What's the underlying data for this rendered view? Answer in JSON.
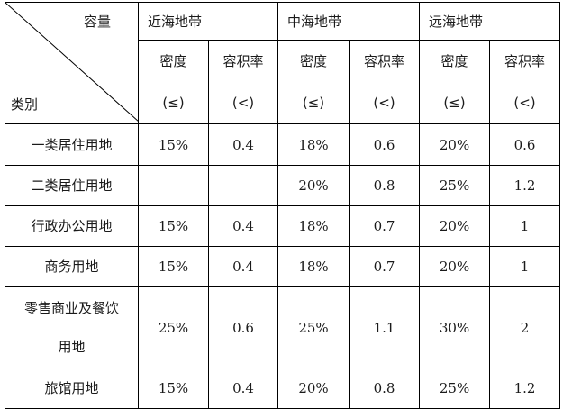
{
  "corner": {
    "top": "容量",
    "bottom": "类别"
  },
  "zones": [
    "近海地带",
    "中海地带",
    "远海地带"
  ],
  "sub_headers": [
    {
      "name": "密度",
      "unit": "(≤)"
    },
    {
      "name": "容积率",
      "unit": "(<)"
    },
    {
      "name": "密度",
      "unit": "(≤)"
    },
    {
      "name": "容积率",
      "unit": "(<)"
    },
    {
      "name": "密度",
      "unit": "(≤)"
    },
    {
      "name": "容积率",
      "unit": "(<)"
    }
  ],
  "rows": [
    {
      "category": "一类居住用地",
      "values": [
        "15%",
        "0.4",
        "18%",
        "0.6",
        "20%",
        "0.6"
      ]
    },
    {
      "category": "二类居住用地",
      "values": [
        "",
        "",
        "20%",
        "0.8",
        "25%",
        "1.2"
      ]
    },
    {
      "category": "行政办公用地",
      "values": [
        "15%",
        "0.4",
        "18%",
        "0.7",
        "20%",
        "1"
      ]
    },
    {
      "category": "商务用地",
      "values": [
        "15%",
        "0.4",
        "18%",
        "0.7",
        "20%",
        "1"
      ]
    },
    {
      "category": "零售商业及餐饮用地",
      "category_lines": [
        "零售商业及餐饮",
        "用地"
      ],
      "values": [
        "25%",
        "0.6",
        "25%",
        "1.1",
        "30%",
        "2"
      ]
    },
    {
      "category": "旅馆用地",
      "values": [
        "15%",
        "0.4",
        "20%",
        "0.8",
        "25%",
        "1.2"
      ]
    }
  ]
}
